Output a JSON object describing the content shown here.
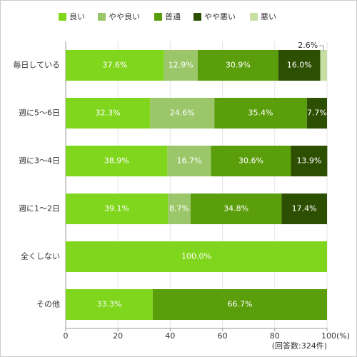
{
  "chart_data": {
    "type": "stacked-bar-horizontal",
    "categories": [
      "毎日している",
      "週に5～6日",
      "週に3～4日",
      "週に1～2日",
      "全くしない",
      "その他"
    ],
    "series": [
      {
        "name": "良い",
        "color": "#80d61c",
        "values": [
          37.6,
          32.3,
          38.9,
          39.1,
          100.0,
          33.3
        ],
        "value_labels": [
          "37.6%",
          "32.3%",
          "38.9%",
          "39.1%",
          "100.0%",
          "33.3%"
        ]
      },
      {
        "name": "やや良い",
        "color": "#9cc66a",
        "values": [
          12.9,
          24.6,
          16.7,
          8.7,
          null,
          null
        ],
        "value_labels": [
          "12.9%",
          "24.6%",
          "16.7%",
          "8.7%",
          null,
          null
        ]
      },
      {
        "name": "普通",
        "color": "#5b9e0b",
        "values": [
          30.9,
          35.4,
          30.6,
          34.8,
          null,
          66.7
        ],
        "value_labels": [
          "30.9%",
          "35.4%",
          "30.6%",
          "34.8%",
          null,
          "66.7%"
        ]
      },
      {
        "name": "やや悪い",
        "color": "#2c4f02",
        "values": [
          16.0,
          7.7,
          13.9,
          17.4,
          null,
          null
        ],
        "value_labels": [
          "16.0%",
          "7.7%",
          "13.9%",
          "17.4%",
          null,
          null
        ]
      },
      {
        "name": "悪い",
        "color": "#c6dfa2",
        "values": [
          2.6,
          null,
          null,
          null,
          null,
          null
        ],
        "value_labels": [
          "2.6%",
          null,
          null,
          null,
          null,
          null
        ]
      }
    ],
    "xlim": [
      0,
      100
    ],
    "xticks": [
      0,
      20,
      40,
      60,
      80,
      {
        "value": 100,
        "label": "100(%)"
      }
    ],
    "note": "(回答数:324件)"
  }
}
